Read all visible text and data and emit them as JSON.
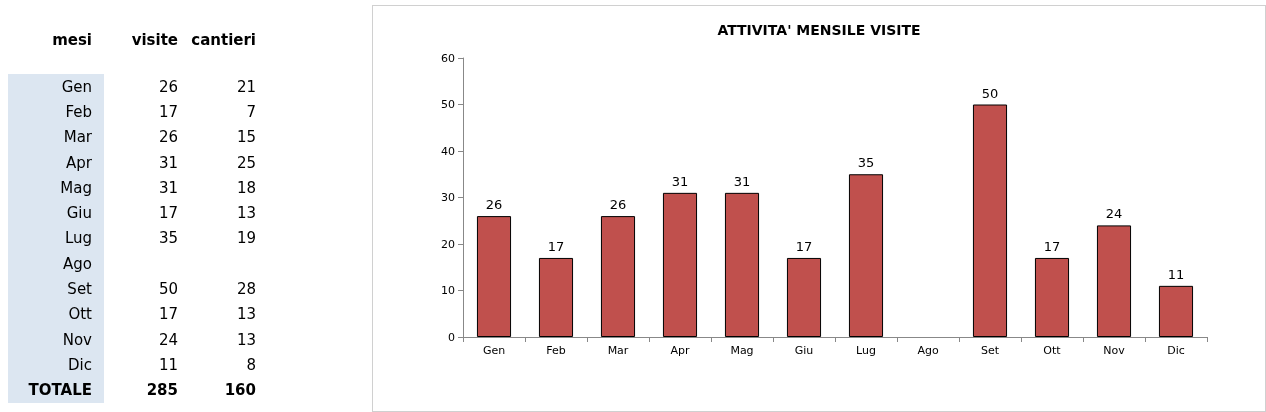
{
  "chart_data": [
    {
      "type": "other",
      "xlabel": "mesi",
      "data_labels": true,
      "categories": [
        "Gen",
        "Feb",
        "Mar",
        "Apr",
        "Mag",
        "Giu",
        "Lug",
        "Ago",
        "Set",
        "Ott",
        "Nov",
        "Dic",
        "TOTALE"
      ],
      "series": [
        {
          "name": "visite",
          "values": [
            26,
            17,
            26,
            31,
            31,
            17,
            35,
            null,
            50,
            17,
            24,
            11,
            285
          ]
        },
        {
          "name": "cantieri",
          "values": [
            21,
            7,
            15,
            25,
            18,
            13,
            19,
            null,
            28,
            13,
            13,
            8,
            160
          ]
        }
      ]
    },
    {
      "type": "bar",
      "title": "ATTIVITA' MENSILE VISITE",
      "categories": [
        "Gen",
        "Feb",
        "Mar",
        "Apr",
        "Mag",
        "Giu",
        "Lug",
        "Ago",
        "Set",
        "Ott",
        "Nov",
        "Dic"
      ],
      "values": [
        26,
        17,
        26,
        31,
        31,
        17,
        35,
        null,
        50,
        17,
        24,
        11
      ],
      "color": "#c0504d",
      "ylim": [
        0,
        60
      ],
      "yticks": [
        0,
        10,
        20,
        30,
        40,
        50,
        60
      ],
      "data_labels": true,
      "grid": false
    }
  ]
}
